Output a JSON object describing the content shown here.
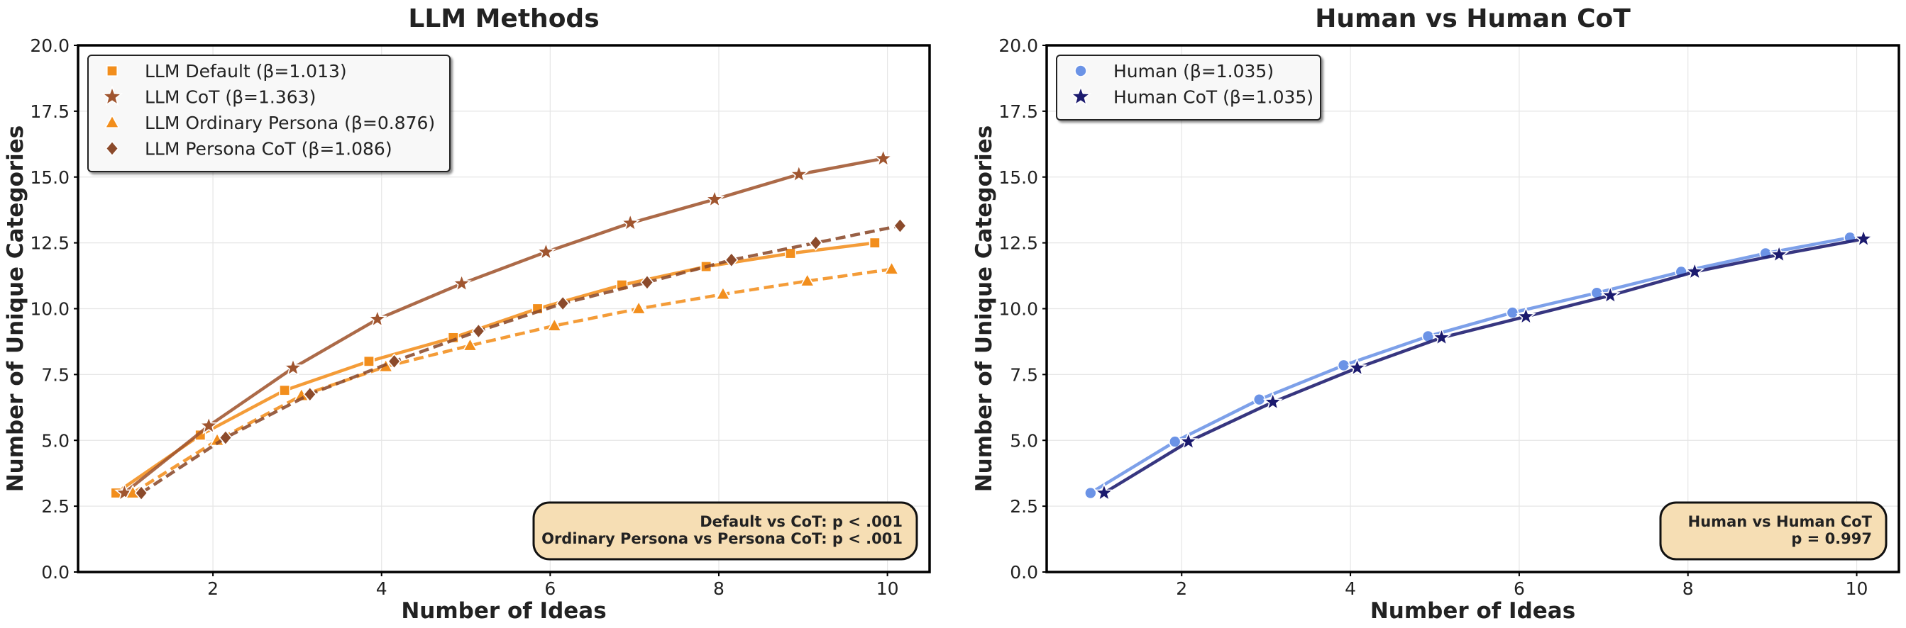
{
  "chart_data": [
    {
      "type": "line",
      "title": "LLM Methods",
      "xlabel": "Number of Ideas",
      "ylabel": "Number of Unique Categories",
      "xlim": [
        0.4,
        10.5
      ],
      "ylim": [
        0,
        20
      ],
      "xticks": [
        "2",
        "4",
        "6",
        "8",
        "10"
      ],
      "xtick_values": [
        2,
        4,
        6,
        8,
        10
      ],
      "yticks": [
        "0.0",
        "2.5",
        "5.0",
        "7.5",
        "10.0",
        "12.5",
        "15.0",
        "17.5",
        "20.0"
      ],
      "ytick_values": [
        0,
        2.5,
        5,
        7.5,
        10,
        12.5,
        15,
        17.5,
        20
      ],
      "grid": true,
      "legend_position": "top-left",
      "series": [
        {
          "name": "LLM Default (β=1.013)",
          "color": "#f28e1c",
          "marker": "square",
          "dashed": false,
          "offset": -0.15,
          "values": [
            3.0,
            5.2,
            6.9,
            8.0,
            8.9,
            10.0,
            10.9,
            11.6,
            12.1,
            12.5
          ]
        },
        {
          "name": "LLM CoT (β=1.363)",
          "color": "#a0552f",
          "marker": "star",
          "dashed": false,
          "offset": -0.05,
          "values": [
            3.0,
            5.55,
            7.75,
            9.6,
            10.95,
            12.15,
            13.25,
            14.15,
            15.1,
            15.7
          ]
        },
        {
          "name": "LLM Ordinary Persona (β=0.876)",
          "color": "#f28e1c",
          "marker": "triangle",
          "dashed": true,
          "offset": 0.05,
          "values": [
            3.0,
            5.0,
            6.7,
            7.8,
            8.6,
            9.35,
            10.0,
            10.55,
            11.05,
            11.5
          ]
        },
        {
          "name": "LLM Persona CoT (β=1.086)",
          "color": "#8b4a2b",
          "marker": "diamond",
          "dashed": true,
          "offset": 0.15,
          "values": [
            3.0,
            5.1,
            6.75,
            8.0,
            9.15,
            10.2,
            11.0,
            11.85,
            12.5,
            13.15
          ]
        }
      ],
      "annotation": [
        "Default vs CoT: p < .001",
        "Ordinary Persona vs Persona CoT: p < .001"
      ]
    },
    {
      "type": "line",
      "title": "Human vs Human CoT",
      "xlabel": "Number of Ideas",
      "ylabel": "Number of Unique Categories",
      "xlim": [
        0.4,
        10.5
      ],
      "ylim": [
        0,
        20
      ],
      "xticks": [
        "2",
        "4",
        "6",
        "8",
        "10"
      ],
      "xtick_values": [
        2,
        4,
        6,
        8,
        10
      ],
      "yticks": [
        "0.0",
        "2.5",
        "5.0",
        "7.5",
        "10.0",
        "12.5",
        "15.0",
        "17.5",
        "20.0"
      ],
      "ytick_values": [
        0,
        2.5,
        5,
        7.5,
        10,
        12.5,
        15,
        17.5,
        20
      ],
      "grid": true,
      "legend_position": "top-left",
      "series": [
        {
          "name": "Human (β=1.035)",
          "color": "#6b93e6",
          "marker": "circle",
          "dashed": false,
          "offset": -0.08,
          "values": [
            3.0,
            4.95,
            6.55,
            7.85,
            8.95,
            9.85,
            10.6,
            11.4,
            12.1,
            12.7
          ]
        },
        {
          "name": "Human CoT (β=1.035)",
          "color": "#1b1a6e",
          "marker": "star",
          "dashed": false,
          "offset": 0.08,
          "values": [
            3.0,
            4.95,
            6.45,
            7.75,
            8.9,
            9.7,
            10.5,
            11.4,
            12.05,
            12.65
          ]
        }
      ],
      "annotation": [
        "Human vs Human CoT",
        "p = 0.997"
      ]
    }
  ]
}
